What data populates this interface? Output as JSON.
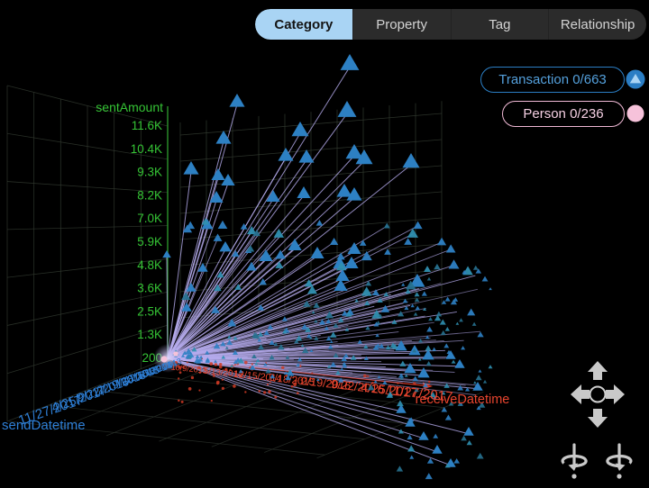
{
  "app": {
    "background": "#000000"
  },
  "tabs": {
    "items": [
      {
        "label": "Category",
        "active": true
      },
      {
        "label": "Property",
        "active": false
      },
      {
        "label": "Tag",
        "active": false
      },
      {
        "label": "Relationship",
        "active": false
      }
    ]
  },
  "legend": {
    "items": [
      {
        "label": "Transaction 0/663",
        "marker": "triangle-in-circle",
        "border_color": "#2b7ec4",
        "text_color": "#54a0dc",
        "icon_fill": "#2b7ec4",
        "icon_glyph_color": "#a9d4f4"
      },
      {
        "label": "Person 0/236",
        "marker": "circle",
        "border_color": "#efb8d4",
        "text_color": "#f6d0e4",
        "icon_fill": "#f6c2da"
      }
    ]
  },
  "controls": {
    "pan": [
      "pan-up",
      "pan-left",
      "pan-right",
      "pan-down"
    ],
    "rotate": [
      "rotate-left",
      "rotate-right"
    ],
    "color": "#c9c9c9"
  },
  "chart_data": {
    "type": "scatter",
    "projection": "3d",
    "background": "#000000",
    "grid": true,
    "legend_position": "top-right",
    "axes": {
      "y": {
        "label": "sentAmount",
        "color": "#35c435",
        "axis_color": "#2f9e2f",
        "ticks": [
          "11.6K",
          "10.4K",
          "9.3K",
          "8.2K",
          "7.0K",
          "5.9K",
          "4.8K",
          "3.6K",
          "2.5K",
          "1.3K",
          "200"
        ]
      },
      "x": {
        "label": "receiveDatetime",
        "color": "#e8442e",
        "axis_color": "#d23420",
        "ticks": [
          "10/9/2013",
          "5/13/2014",
          "12/15/2014",
          "7/18/2015",
          "2/19/2016",
          "9/22/2016",
          "4/25/2017",
          "11/27/2017"
        ]
      },
      "z": {
        "label": "sendDatetime",
        "color": "#2e7fd6",
        "axis_color": "#2e7fd6",
        "ticks": [
          "11/27/2017",
          "4/25/2017",
          "9/22/2016",
          "2/19/2016",
          "7/18/2015",
          "12/15/2014",
          "5/13/2014",
          "10/9/2013"
        ]
      }
    },
    "series": [
      {
        "name": "Transaction",
        "selected": 0,
        "total": 663,
        "marker": "triangle",
        "color": "#2d80c3",
        "alt_colors": [
          "#2f8fb0",
          "#27718f"
        ]
      },
      {
        "name": "Person",
        "selected": 0,
        "total": 236,
        "marker": "circle",
        "color": "#f6c2da"
      }
    ],
    "edges": {
      "color": "#b6acee",
      "description": "edges radiate from person node at axes origin to transaction triangles"
    },
    "annotations": {
      "speck_color": "#cf3a24",
      "grid_color": "#323a30",
      "floor_grid_color": "#272d27"
    }
  }
}
